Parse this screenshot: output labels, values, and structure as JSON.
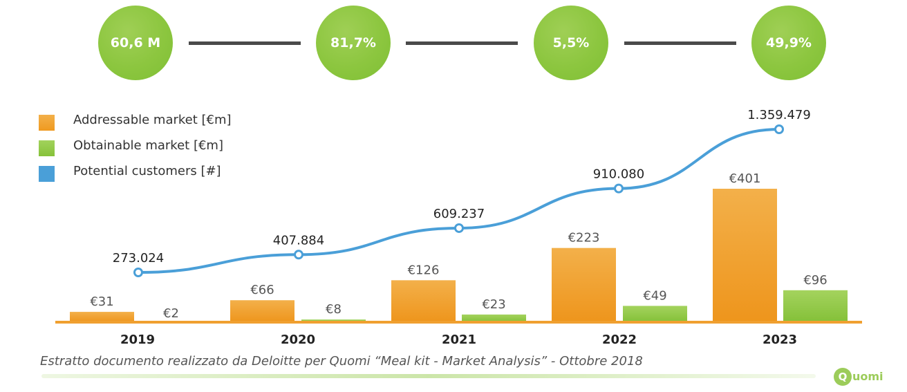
{
  "kpis": [
    "60,6 M",
    "81,7%",
    "5,5%",
    "49,9%"
  ],
  "colors": {
    "addressable": "#f0a030",
    "obtainable": "#8cc63f",
    "customers": "#4a9fd8",
    "kpi": "#8cc63f"
  },
  "chart_data": {
    "type": "bar",
    "categories": [
      "2019",
      "2020",
      "2021",
      "2022",
      "2023"
    ],
    "series": [
      {
        "name": "Addressable market [€m]",
        "kind": "bar",
        "values": [
          31,
          66,
          126,
          223,
          401
        ],
        "labels": [
          "€31",
          "€66",
          "€126",
          "€223",
          "€401"
        ]
      },
      {
        "name": "Obtainable market [€m]",
        "kind": "bar",
        "values": [
          2,
          8,
          23,
          49,
          96
        ],
        "labels": [
          "€2",
          "€8",
          "€23",
          "€49",
          "€96"
        ]
      },
      {
        "name": "Potential customers [#]",
        "kind": "line",
        "values": [
          273024,
          407884,
          609237,
          910080,
          1359479
        ],
        "labels": [
          "273.024",
          "407.884",
          "609.237",
          "910.080",
          "1.359.479"
        ]
      }
    ],
    "legend": "top-left",
    "grid": false
  },
  "caption": "Estratto documento realizzato da Deloitte per Quomi “Meal kit - Market Analysis” - Ottobre 2018",
  "logo": {
    "mark": "Q",
    "text": "uomi"
  }
}
